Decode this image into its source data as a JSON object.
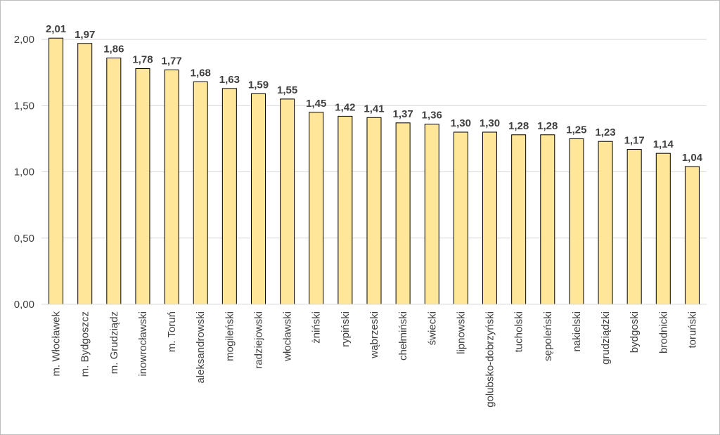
{
  "chart_data": {
    "type": "bar",
    "categories": [
      "m. Włocławek",
      "m. Bydgoszcz",
      "m. Grudziądz",
      "inowrocławski",
      "m. Toruń",
      "aleksandrowski",
      "mogileński",
      "radziejowski",
      "włocławski",
      "żniński",
      "rypiński",
      "wąbrzeski",
      "chełmiński",
      "świecki",
      "lipnowski",
      "golubsko-dobrzyński",
      "tucholski",
      "sępoleński",
      "nakielski",
      "grudziądzki",
      "bydgoski",
      "brodnicki",
      "toruński"
    ],
    "values": [
      2.01,
      1.97,
      1.86,
      1.78,
      1.77,
      1.68,
      1.63,
      1.59,
      1.55,
      1.45,
      1.42,
      1.41,
      1.37,
      1.36,
      1.3,
      1.3,
      1.28,
      1.28,
      1.25,
      1.23,
      1.17,
      1.14,
      1.04
    ],
    "value_labels": [
      "2,01",
      "1,97",
      "1,86",
      "1,78",
      "1,77",
      "1,68",
      "1,63",
      "1,59",
      "1,55",
      "1,45",
      "1,42",
      "1,41",
      "1,37",
      "1,36",
      "1,30",
      "1,30",
      "1,28",
      "1,28",
      "1,25",
      "1,23",
      "1,17",
      "1,14",
      "1,04"
    ],
    "y_ticks": [
      "0,00",
      "0,50",
      "1,00",
      "1,50",
      "2,00"
    ],
    "y_tick_values": [
      0,
      0.5,
      1.0,
      1.5,
      2.0
    ],
    "ylim": [
      0,
      2.25
    ],
    "title": "",
    "xlabel": "",
    "ylabel": "",
    "grid": true,
    "legend": "none",
    "bar_color": "#ffe699",
    "bar_edge_color": "#000000",
    "grid_color": "#d9d9d9",
    "text_color": "#404040"
  }
}
